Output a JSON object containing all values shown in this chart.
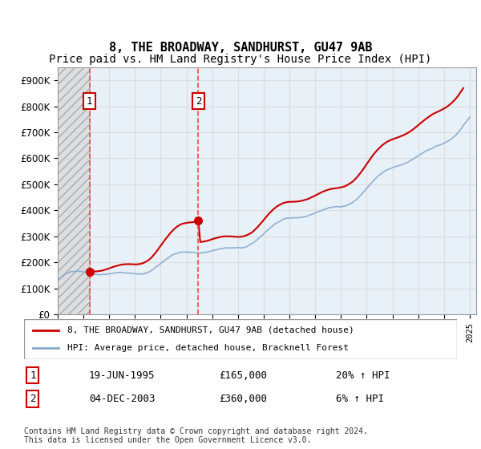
{
  "title": "8, THE BROADWAY, SANDHURST, GU47 9AB",
  "subtitle": "Price paid vs. HM Land Registry's House Price Index (HPI)",
  "legend_line1": "8, THE BROADWAY, SANDHURST, GU47 9AB (detached house)",
  "legend_line2": "HPI: Average price, detached house, Bracknell Forest",
  "footnote": "Contains HM Land Registry data © Crown copyright and database right 2024.\nThis data is licensed under the Open Government Licence v3.0.",
  "sale1_date": "19-JUN-1995",
  "sale1_price": 165000,
  "sale1_hpi": "20% ↑ HPI",
  "sale1_label": "1",
  "sale1_year": 1995.46,
  "sale2_date": "04-DEC-2003",
  "sale2_price": 360000,
  "sale2_hpi": "6% ↑ HPI",
  "sale2_label": "2",
  "sale2_year": 2003.92,
  "ylim": [
    0,
    950000
  ],
  "yticks": [
    0,
    100000,
    200000,
    300000,
    400000,
    500000,
    600000,
    700000,
    800000,
    900000
  ],
  "ylabel_format": "£{0}K",
  "hatch_color": "#cccccc",
  "grid_color": "#dddddd",
  "bg_plot": "#e8f0f8",
  "bg_hatch": "#e8e8e8",
  "red_line_color": "#cc0000",
  "blue_line_color": "#88aacc",
  "sale_marker_color": "#cc0000",
  "vline_color": "#ff4444",
  "box_color": "#cc0000",
  "title_fontsize": 11,
  "subtitle_fontsize": 10
}
